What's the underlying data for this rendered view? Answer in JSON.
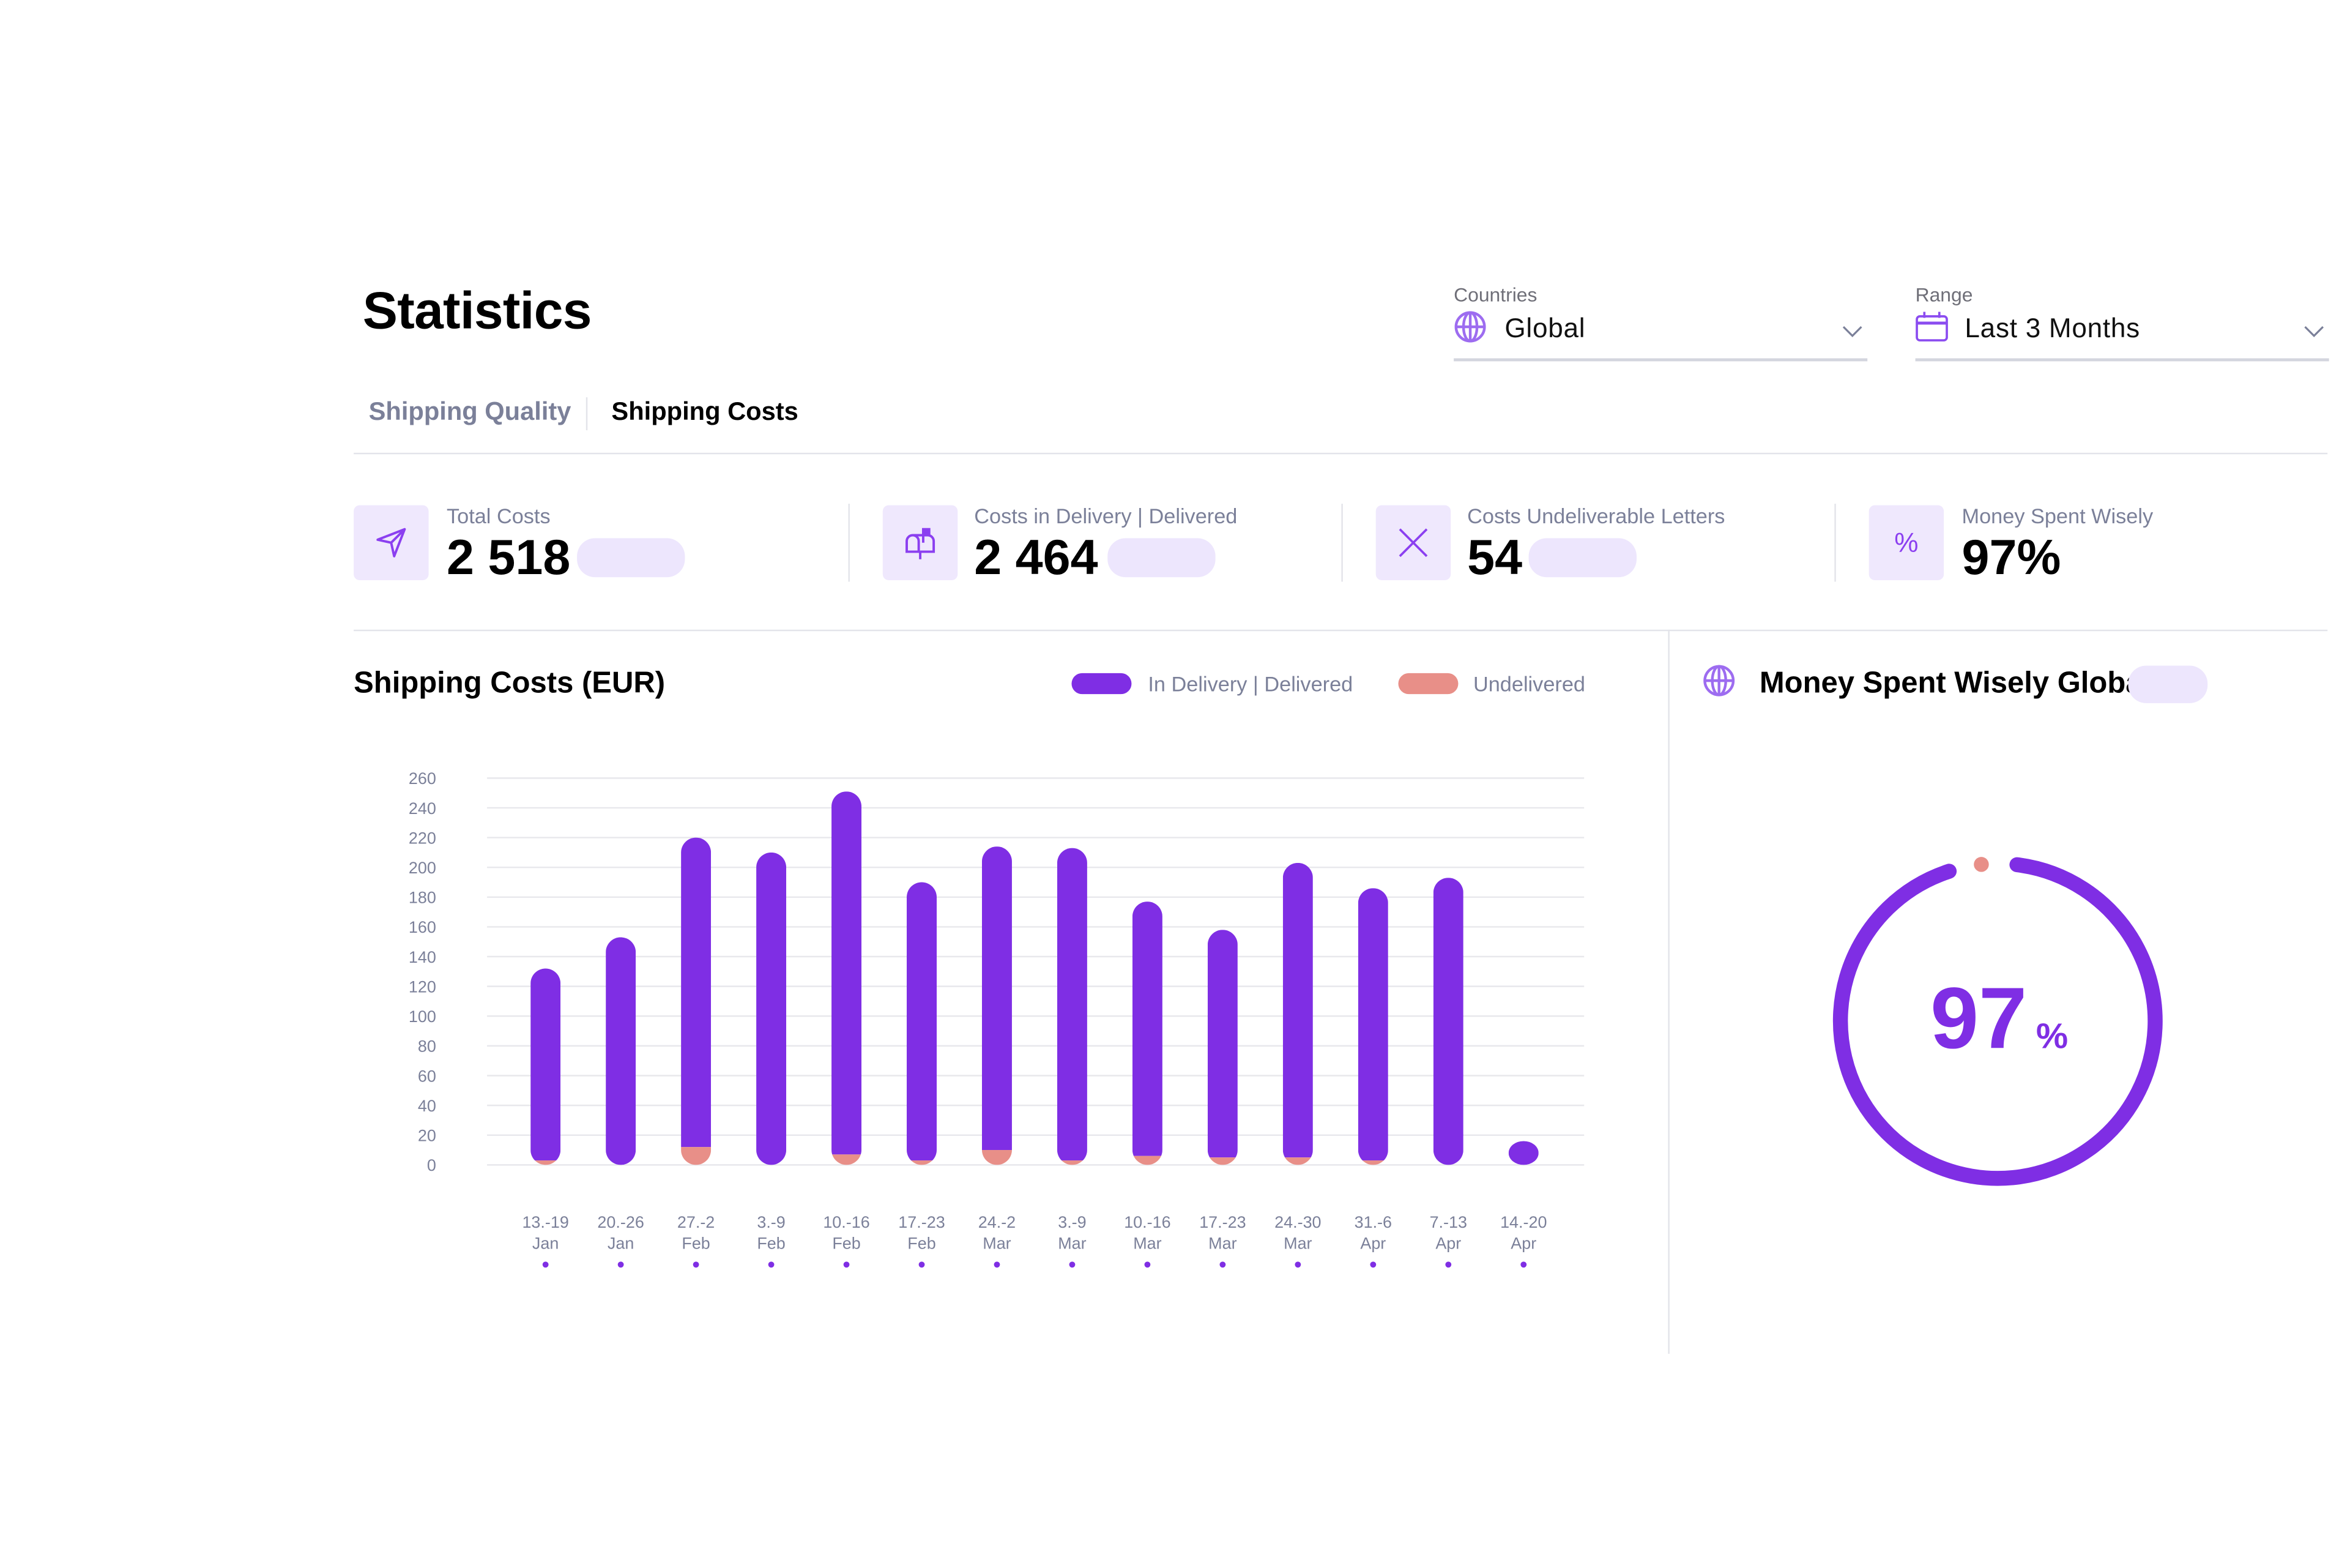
{
  "header": {
    "title": "Statistics",
    "countries": {
      "label": "Countries",
      "value": "Global",
      "icon": "globe-icon"
    },
    "range": {
      "label": "Range",
      "value": "Last 3 Months",
      "icon": "calendar-icon"
    }
  },
  "tabs": [
    {
      "label": "Shipping Quality",
      "active": false
    },
    {
      "label": "Shipping Costs",
      "active": true
    }
  ],
  "kpis": [
    {
      "label": "Total Costs",
      "value": "2 518",
      "icon": "paper-plane-icon"
    },
    {
      "label": "Costs in Delivery | Delivered",
      "value": "2 464",
      "icon": "mailbox-icon"
    },
    {
      "label": "Costs Undeliverable Letters",
      "value": "54",
      "icon": "x-icon"
    },
    {
      "label": "Money Spent Wisely",
      "value": "97%",
      "icon": "percent-icon"
    }
  ],
  "colors": {
    "accent": "#7f2ee4",
    "undelivered": "#e88f88",
    "pill": "#ede6fd",
    "muted_text": "#7b8099"
  },
  "chart_data": {
    "type": "bar",
    "stacked": true,
    "title": "Shipping Costs (EUR)",
    "xlabel": "",
    "ylabel": "",
    "ylim": [
      0,
      260
    ],
    "yticks": [
      0,
      20,
      40,
      60,
      80,
      100,
      120,
      140,
      160,
      180,
      200,
      220,
      240,
      260
    ],
    "grid": true,
    "legend_position": "top-right",
    "categories": [
      {
        "range": "13.-19",
        "month": "Jan"
      },
      {
        "range": "20.-26",
        "month": "Jan"
      },
      {
        "range": "27.-2",
        "month": "Feb"
      },
      {
        "range": "3.-9",
        "month": "Feb"
      },
      {
        "range": "10.-16",
        "month": "Feb"
      },
      {
        "range": "17.-23",
        "month": "Feb"
      },
      {
        "range": "24.-2",
        "month": "Mar"
      },
      {
        "range": "3.-9",
        "month": "Mar"
      },
      {
        "range": "10.-16",
        "month": "Mar"
      },
      {
        "range": "17.-23",
        "month": "Mar"
      },
      {
        "range": "24.-30",
        "month": "Mar"
      },
      {
        "range": "31.-6",
        "month": "Apr"
      },
      {
        "range": "7.-13",
        "month": "Apr"
      },
      {
        "range": "14.-20",
        "month": "Apr"
      }
    ],
    "series": [
      {
        "name": "Undelivered",
        "color": "#e88f88",
        "values": [
          3,
          0,
          12,
          0,
          7,
          3,
          10,
          3,
          6,
          5,
          5,
          3,
          0,
          0
        ]
      },
      {
        "name": "In Delivery | Delivered",
        "color": "#7f2ee4",
        "values": [
          129,
          153,
          208,
          210,
          244,
          187,
          204,
          210,
          171,
          153,
          198,
          183,
          193,
          16
        ]
      }
    ]
  },
  "gauge": {
    "title": "Money Spent Wisely Global",
    "icon": "globe-icon",
    "value": 97,
    "value_text": "97",
    "unit": "%"
  }
}
